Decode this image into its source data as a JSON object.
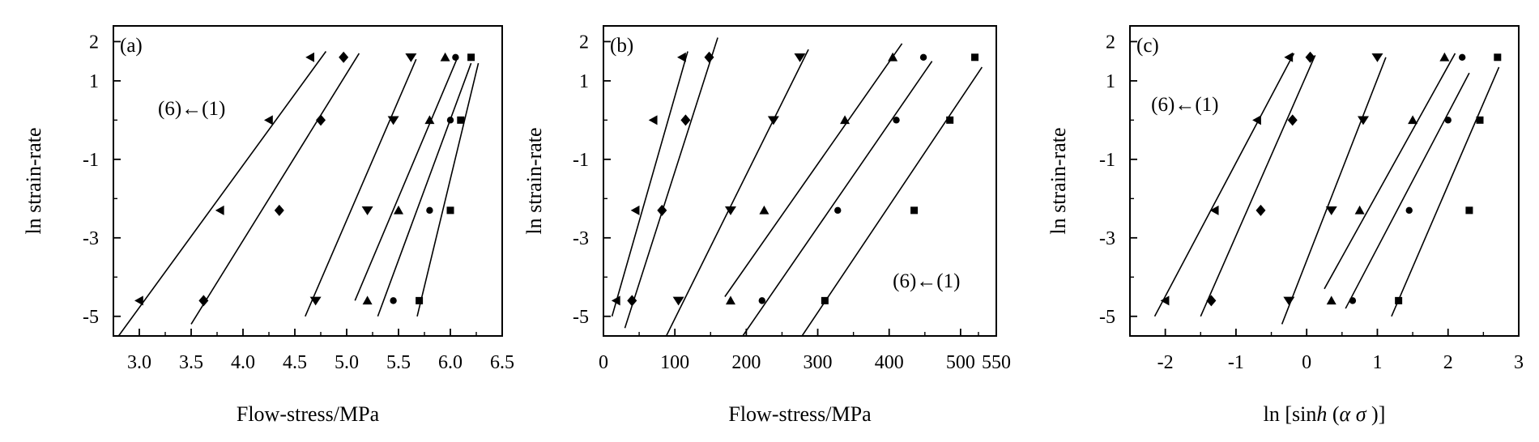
{
  "chart_data": [
    {
      "panel_label": "(a)",
      "type": "scatter",
      "xlabel": "Flow-stress/MPa",
      "ylabel": "ln strain-rate",
      "xlim": [
        2.75,
        6.5
      ],
      "ylim": [
        -5.5,
        2.4
      ],
      "xticks": [
        3.0,
        3.5,
        4.0,
        4.5,
        5.0,
        5.5,
        6.0,
        6.5
      ],
      "xtick_labels": [
        "3.0",
        "3.5",
        "4.0",
        "4.5",
        "5.0",
        "5.5",
        "6.0",
        "6.5"
      ],
      "yticks": [
        2,
        1,
        -1,
        -3,
        -5
      ],
      "ytick_labels": [
        "2",
        "1",
        "-1",
        "-3",
        "-5"
      ],
      "minor_yticks": [
        0,
        -2,
        -4
      ],
      "annotation": {
        "text": "(6)←(1)",
        "x": 3.18,
        "y": 0.3
      },
      "series": [
        {
          "marker": "square",
          "points": [
            [
              6.2,
              1.6
            ],
            [
              6.1,
              0.0
            ],
            [
              6.0,
              -2.3
            ],
            [
              5.7,
              -4.6
            ]
          ],
          "fit": [
            [
              5.68,
              -5.0
            ],
            [
              6.27,
              1.45
            ]
          ]
        },
        {
          "marker": "circle",
          "points": [
            [
              6.05,
              1.6
            ],
            [
              6.0,
              0.0
            ],
            [
              5.8,
              -2.3
            ],
            [
              5.45,
              -4.6
            ]
          ],
          "fit": [
            [
              5.3,
              -5.0
            ],
            [
              6.2,
              1.45
            ]
          ]
        },
        {
          "marker": "triangle",
          "points": [
            [
              5.95,
              1.6
            ],
            [
              5.8,
              0.0
            ],
            [
              5.5,
              -2.3
            ],
            [
              5.2,
              -4.6
            ]
          ],
          "fit": [
            [
              5.08,
              -4.6
            ],
            [
              6.07,
              1.6
            ]
          ]
        },
        {
          "marker": "tri-down",
          "points": [
            [
              5.62,
              1.6
            ],
            [
              5.45,
              0.0
            ],
            [
              5.2,
              -2.3
            ],
            [
              4.7,
              -4.6
            ]
          ],
          "fit": [
            [
              4.6,
              -5.0
            ],
            [
              5.67,
              1.55
            ]
          ]
        },
        {
          "marker": "diamond",
          "points": [
            [
              4.97,
              1.6
            ],
            [
              4.75,
              0.0
            ],
            [
              4.35,
              -2.3
            ],
            [
              3.62,
              -4.6
            ]
          ],
          "fit": [
            [
              3.5,
              -5.2
            ],
            [
              5.12,
              1.7
            ]
          ]
        },
        {
          "marker": "tri-left",
          "points": [
            [
              4.65,
              1.6
            ],
            [
              4.25,
              0.0
            ],
            [
              3.78,
              -2.3
            ],
            [
              3.0,
              -4.6
            ]
          ],
          "fit": [
            [
              2.8,
              -5.5
            ],
            [
              4.8,
              1.75
            ]
          ]
        }
      ]
    },
    {
      "panel_label": "(b)",
      "type": "scatter",
      "xlabel": "Flow-stress/MPa",
      "ylabel": "ln strain-rate",
      "xlim": [
        0,
        550
      ],
      "ylim": [
        -5.5,
        2.4
      ],
      "xticks": [
        0,
        100,
        200,
        300,
        400,
        500,
        550
      ],
      "xtick_labels": [
        "0",
        "100",
        "200",
        "300",
        "400",
        "500",
        "550"
      ],
      "yticks": [
        2,
        1,
        -1,
        -3,
        -5
      ],
      "ytick_labels": [
        "2",
        "1",
        "-1",
        "-3",
        "-5"
      ],
      "minor_yticks": [
        0,
        -2,
        -4
      ],
      "annotation": {
        "text": "(6)←(1)",
        "x": 405,
        "y": -4.1
      },
      "series": [
        {
          "marker": "square",
          "points": [
            [
              520,
              1.6
            ],
            [
              485,
              0.0
            ],
            [
              435,
              -2.3
            ],
            [
              310,
              -4.6
            ]
          ],
          "fit": [
            [
              278,
              -5.5
            ],
            [
              530,
              1.35
            ]
          ]
        },
        {
          "marker": "circle",
          "points": [
            [
              448,
              1.6
            ],
            [
              410,
              0.0
            ],
            [
              328,
              -2.3
            ],
            [
              222,
              -4.6
            ]
          ],
          "fit": [
            [
              195,
              -5.5
            ],
            [
              460,
              1.5
            ]
          ]
        },
        {
          "marker": "triangle",
          "points": [
            [
              405,
              1.6
            ],
            [
              338,
              0.0
            ],
            [
              225,
              -2.3
            ],
            [
              178,
              -4.6
            ]
          ],
          "fit": [
            [
              170,
              -4.5
            ],
            [
              418,
              1.95
            ]
          ]
        },
        {
          "marker": "tri-down",
          "points": [
            [
              275,
              1.6
            ],
            [
              238,
              0.0
            ],
            [
              178,
              -2.3
            ],
            [
              105,
              -4.6
            ]
          ],
          "fit": [
            [
              88,
              -5.5
            ],
            [
              287,
              1.8
            ]
          ]
        },
        {
          "marker": "diamond",
          "points": [
            [
              148,
              1.6
            ],
            [
              115,
              0.0
            ],
            [
              82,
              -2.3
            ],
            [
              40,
              -4.6
            ]
          ],
          "fit": [
            [
              30,
              -5.3
            ],
            [
              160,
              2.1
            ]
          ]
        },
        {
          "marker": "tri-left",
          "points": [
            [
              110,
              1.6
            ],
            [
              70,
              0.0
            ],
            [
              45,
              -2.3
            ],
            [
              18,
              -4.6
            ]
          ],
          "fit": [
            [
              12,
              -5.0
            ],
            [
              118,
              1.75
            ]
          ]
        }
      ]
    },
    {
      "panel_label": "(c)",
      "type": "scatter",
      "xlabel": "ln [sinh (α σ )]",
      "ylabel": "ln strain-rate",
      "xlim": [
        -2.5,
        3.0
      ],
      "ylim": [
        -5.5,
        2.4
      ],
      "xticks": [
        -2,
        -1,
        0,
        1,
        2,
        3
      ],
      "xtick_labels": [
        "-2",
        "-1",
        "0",
        "1",
        "2",
        "3"
      ],
      "yticks": [
        2,
        1,
        -1,
        -3,
        -5
      ],
      "ytick_labels": [
        "2",
        "1",
        "-1",
        "-3",
        "-5"
      ],
      "minor_yticks": [
        0,
        -2,
        -4
      ],
      "annotation": {
        "text": "(6)←(1)",
        "x": -2.2,
        "y": 0.4
      },
      "series": [
        {
          "marker": "square",
          "points": [
            [
              2.7,
              1.6
            ],
            [
              2.45,
              0.0
            ],
            [
              2.3,
              -2.3
            ],
            [
              1.3,
              -4.6
            ]
          ],
          "fit": [
            [
              1.2,
              -5.0
            ],
            [
              2.72,
              1.35
            ]
          ]
        },
        {
          "marker": "circle",
          "points": [
            [
              2.2,
              1.6
            ],
            [
              2.0,
              0.0
            ],
            [
              1.45,
              -2.3
            ],
            [
              0.65,
              -4.6
            ]
          ],
          "fit": [
            [
              0.55,
              -4.8
            ],
            [
              2.3,
              1.2
            ]
          ]
        },
        {
          "marker": "triangle",
          "points": [
            [
              1.95,
              1.6
            ],
            [
              1.5,
              0.0
            ],
            [
              0.75,
              -2.3
            ],
            [
              0.35,
              -4.6
            ]
          ],
          "fit": [
            [
              0.25,
              -4.3
            ],
            [
              2.1,
              1.7
            ]
          ]
        },
        {
          "marker": "tri-down",
          "points": [
            [
              1.0,
              1.6
            ],
            [
              0.8,
              0.0
            ],
            [
              0.35,
              -2.3
            ],
            [
              -0.25,
              -4.6
            ]
          ],
          "fit": [
            [
              -0.35,
              -5.2
            ],
            [
              1.12,
              1.6
            ]
          ]
        },
        {
          "marker": "diamond",
          "points": [
            [
              0.05,
              1.6
            ],
            [
              -0.2,
              0.0
            ],
            [
              -0.65,
              -2.3
            ],
            [
              -1.35,
              -4.6
            ]
          ],
          "fit": [
            [
              -1.5,
              -5.0
            ],
            [
              0.12,
              1.65
            ]
          ]
        },
        {
          "marker": "tri-left",
          "points": [
            [
              -0.25,
              1.6
            ],
            [
              -0.7,
              0.0
            ],
            [
              -1.3,
              -2.3
            ],
            [
              -2.0,
              -4.6
            ]
          ],
          "fit": [
            [
              -2.15,
              -5.0
            ],
            [
              -0.18,
              1.7
            ]
          ]
        }
      ]
    }
  ]
}
